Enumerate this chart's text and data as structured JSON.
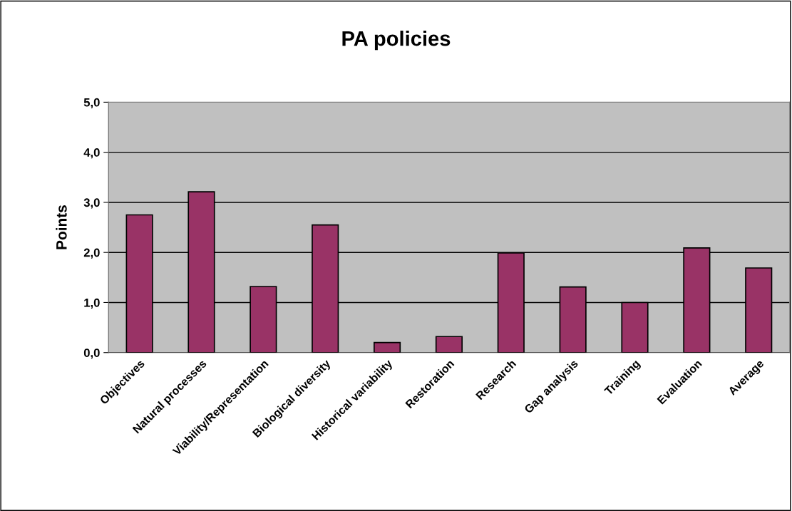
{
  "chart_data": {
    "type": "bar",
    "title": "PA policies",
    "ylabel": "Points",
    "categories": [
      "Objectives",
      "Natural processes",
      "Viability/Representation",
      "Biological diversity",
      "Historical variability",
      "Restoration",
      "Research",
      "Gap analysis",
      "Training",
      "Evaluation",
      "Average"
    ],
    "values": [
      2.75,
      3.21,
      1.32,
      2.55,
      0.2,
      0.32,
      1.99,
      1.31,
      1.0,
      2.09,
      1.69
    ],
    "color": "#993366",
    "ylim": [
      0,
      5
    ],
    "yticks": [
      {
        "value": 0,
        "label": "0,0"
      },
      {
        "value": 1,
        "label": "1,0"
      },
      {
        "value": 2,
        "label": "2,0"
      },
      {
        "value": 3,
        "label": "3,0"
      },
      {
        "value": 4,
        "label": "4,0"
      },
      {
        "value": 5,
        "label": "5,0"
      }
    ],
    "grid": "y",
    "legend": false
  }
}
